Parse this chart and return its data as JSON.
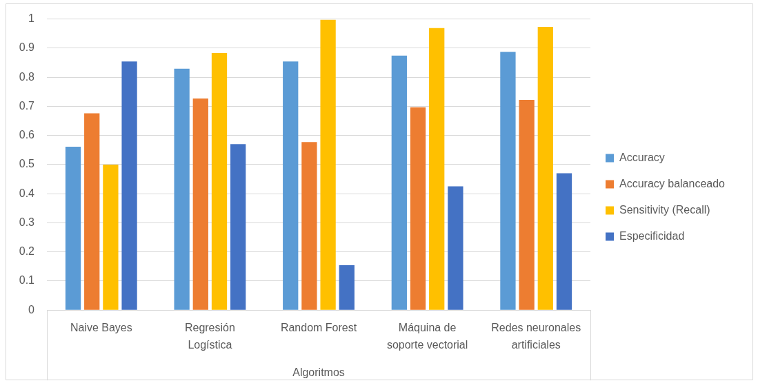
{
  "chart_data": {
    "type": "bar",
    "xlabel": "Algoritmos",
    "categories": [
      "Naive Bayes",
      "Regresión Logística",
      "Random Forest",
      "Máquina de soporte vectorial",
      "Redes neuronales artificiales"
    ],
    "series": [
      {
        "name": "Accuracy",
        "color": "#5b9bd5",
        "values": [
          0.561,
          0.829,
          0.854,
          0.874,
          0.887
        ]
      },
      {
        "name": "Accuracy balanceado",
        "color": "#ed7d31",
        "values": [
          0.676,
          0.727,
          0.577,
          0.697,
          0.722
        ]
      },
      {
        "name": "Sensitivity (Recall)",
        "color": "#ffc000",
        "values": [
          0.5,
          0.883,
          0.997,
          0.969,
          0.973
        ]
      },
      {
        "name": "Especificidad",
        "color": "#4472c4",
        "values": [
          0.854,
          0.57,
          0.154,
          0.425,
          0.47
        ]
      }
    ],
    "ylim": [
      0,
      1
    ],
    "yticks": [
      0,
      0.1,
      0.2,
      0.3,
      0.4,
      0.5,
      0.6,
      0.7,
      0.8,
      0.9,
      1
    ],
    "grid": "y",
    "legend": "right"
  }
}
